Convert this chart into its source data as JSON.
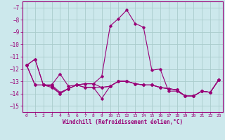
{
  "xlabel": "Windchill (Refroidissement éolien,°C)",
  "bg_color": "#cce8ec",
  "line_color": "#990077",
  "grid_color": "#aacccc",
  "xlim": [
    -0.5,
    23.5
  ],
  "ylim": [
    -15.5,
    -6.5
  ],
  "yticks": [
    -15,
    -14,
    -13,
    -12,
    -11,
    -10,
    -9,
    -8,
    -7
  ],
  "xticks": [
    0,
    1,
    2,
    3,
    4,
    5,
    6,
    7,
    8,
    9,
    10,
    11,
    12,
    13,
    14,
    15,
    16,
    17,
    18,
    19,
    20,
    21,
    22,
    23
  ],
  "line1_x": [
    0,
    1,
    2,
    3,
    4,
    5,
    6,
    7,
    8,
    9,
    10,
    11,
    12,
    13,
    14,
    15,
    16,
    17,
    18,
    19,
    20,
    21,
    22,
    23
  ],
  "line1_y": [
    -11.7,
    -11.2,
    -13.3,
    -13.3,
    -12.4,
    -13.4,
    -13.3,
    -13.2,
    -13.2,
    -12.6,
    -8.5,
    -7.9,
    -7.2,
    -8.3,
    -8.6,
    -12.1,
    -12.0,
    -13.8,
    -13.8,
    -14.2,
    -14.2,
    -13.8,
    -13.9,
    -12.9
  ],
  "line2_x": [
    0,
    1,
    2,
    3,
    4,
    5,
    6,
    7,
    8,
    9,
    10,
    11,
    12,
    13,
    14,
    15,
    16,
    17,
    18,
    19,
    20,
    21,
    22,
    23
  ],
  "line2_y": [
    -11.7,
    -11.2,
    -13.3,
    -13.5,
    -14.0,
    -13.6,
    -13.3,
    -13.5,
    -13.5,
    -14.4,
    -13.4,
    -13.0,
    -13.0,
    -13.2,
    -13.3,
    -13.3,
    -13.5,
    -13.6,
    -13.7,
    -14.2,
    -14.2,
    -13.8,
    -13.9,
    -12.9
  ],
  "line3_x": [
    0,
    1,
    2,
    3,
    4,
    5,
    6,
    7,
    8,
    9,
    10,
    11,
    12,
    13,
    14,
    15,
    16,
    17,
    18,
    19,
    20,
    21,
    22,
    23
  ],
  "line3_y": [
    -11.7,
    -13.3,
    -13.3,
    -13.4,
    -14.0,
    -13.6,
    -13.3,
    -13.5,
    -13.5,
    -13.5,
    -13.4,
    -13.0,
    -13.0,
    -13.2,
    -13.3,
    -13.3,
    -13.5,
    -13.6,
    -13.7,
    -14.2,
    -14.2,
    -13.8,
    -13.9,
    -12.9
  ],
  "line4_x": [
    0,
    1,
    2,
    3,
    4,
    5,
    6,
    7,
    8,
    9,
    10,
    11,
    12,
    13,
    14,
    15,
    16,
    17,
    18,
    19,
    20,
    21,
    22,
    23
  ],
  "line4_y": [
    -11.7,
    -13.3,
    -13.3,
    -13.3,
    -13.9,
    -13.6,
    -13.3,
    -13.2,
    -13.2,
    -13.5,
    -13.4,
    -13.0,
    -13.0,
    -13.2,
    -13.3,
    -13.3,
    -13.5,
    -13.6,
    -13.7,
    -14.2,
    -14.2,
    -13.8,
    -13.9,
    -12.9
  ]
}
